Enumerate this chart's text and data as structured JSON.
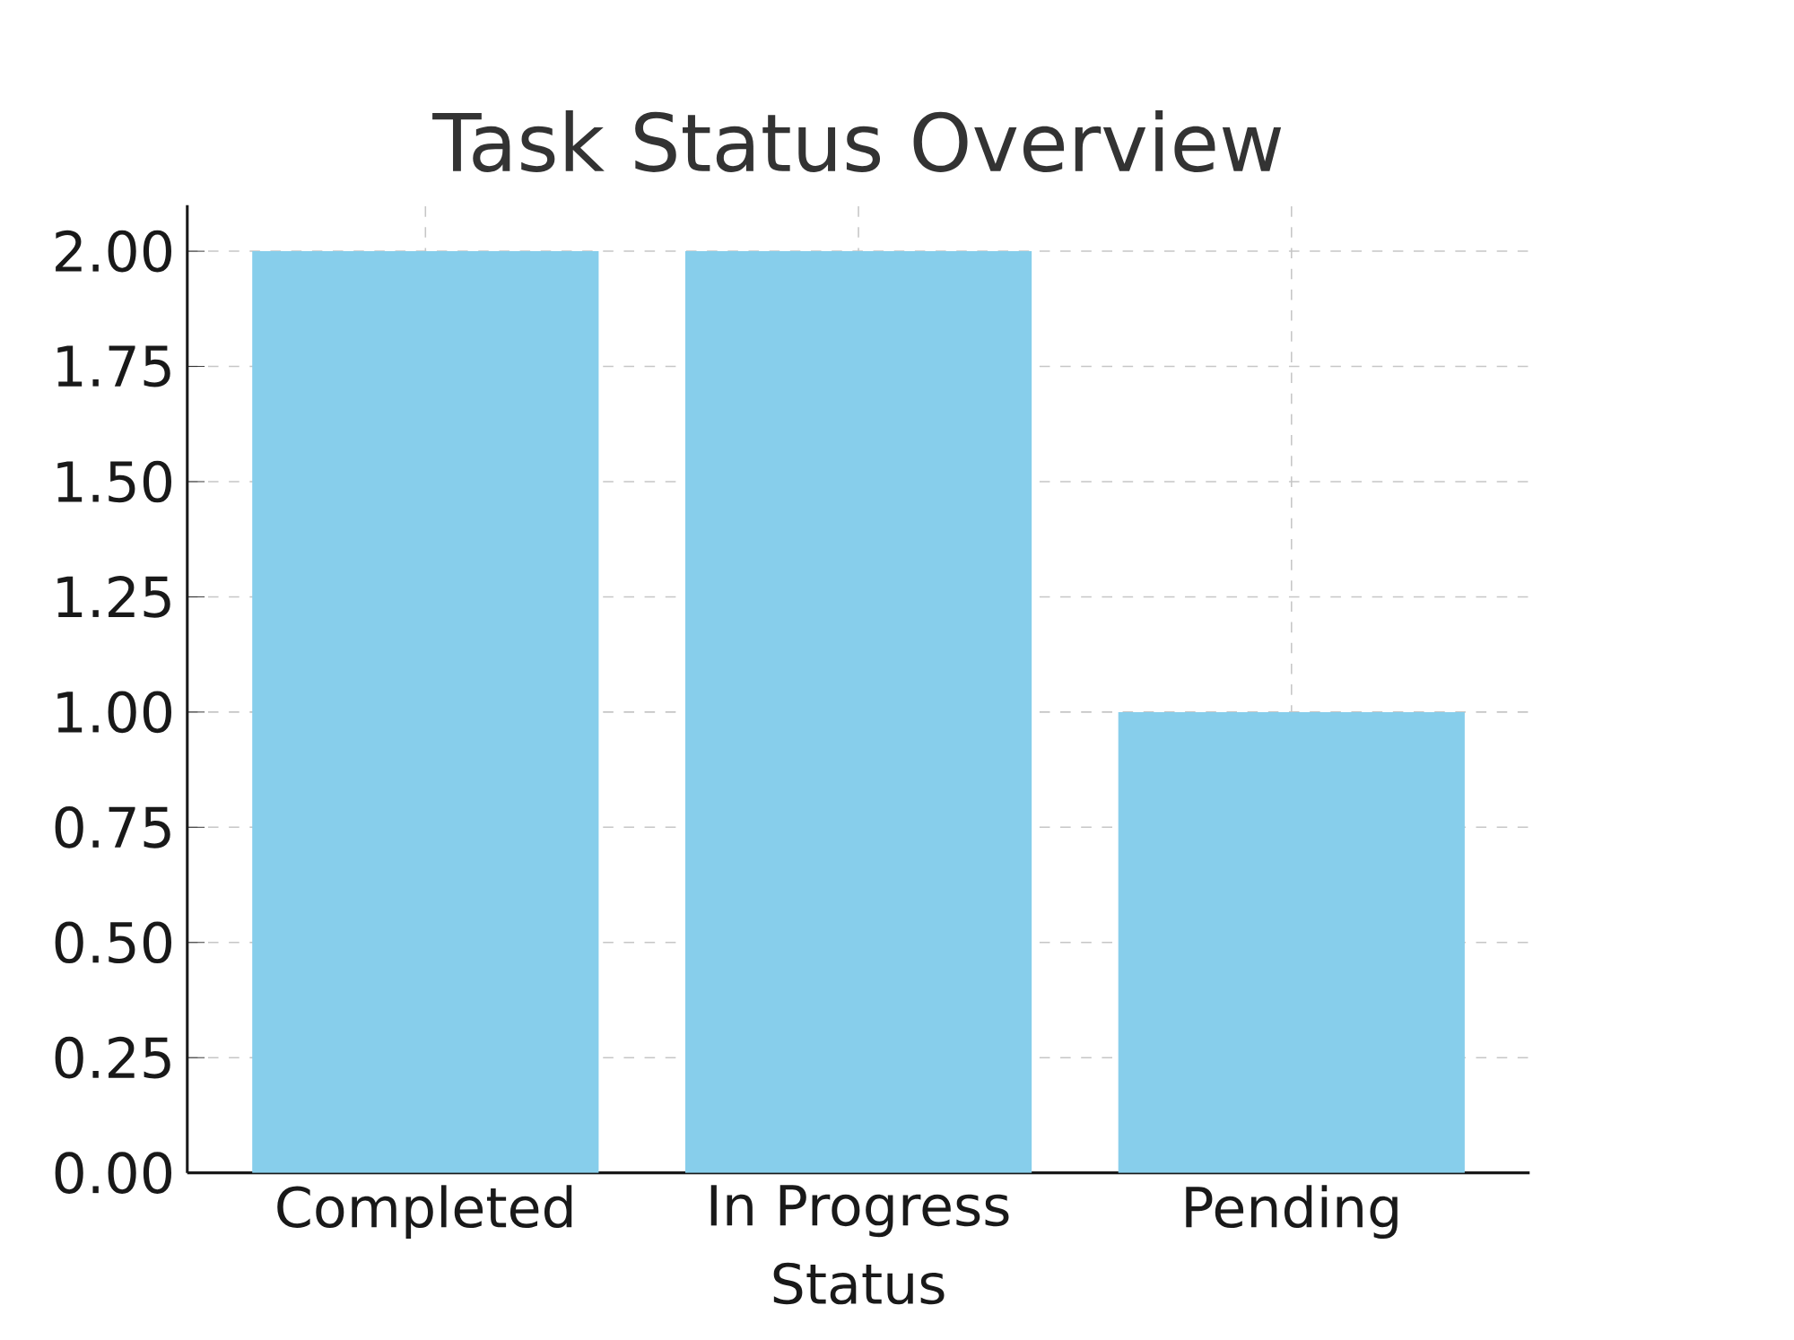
{
  "chart_data": {
    "type": "bar",
    "title": "Task Status Overview",
    "xlabel": "Status",
    "categories": [
      "Completed",
      "In Progress",
      "Pending"
    ],
    "values": [
      2,
      2,
      1
    ],
    "color": "#87ceeb",
    "ylim": [
      0,
      2.1
    ],
    "yticks": [
      {
        "value": 0,
        "label": "0.00"
      },
      {
        "value": 0.25,
        "label": "0.25"
      },
      {
        "value": 0.5,
        "label": "0.50"
      },
      {
        "value": 0.75,
        "label": "0.75"
      },
      {
        "value": 1,
        "label": "1.00"
      },
      {
        "value": 1.25,
        "label": "1.25"
      },
      {
        "value": 1.5,
        "label": "1.50"
      },
      {
        "value": 1.75,
        "label": "1.75"
      },
      {
        "value": 2,
        "label": "2.00"
      }
    ],
    "grid": true
  }
}
